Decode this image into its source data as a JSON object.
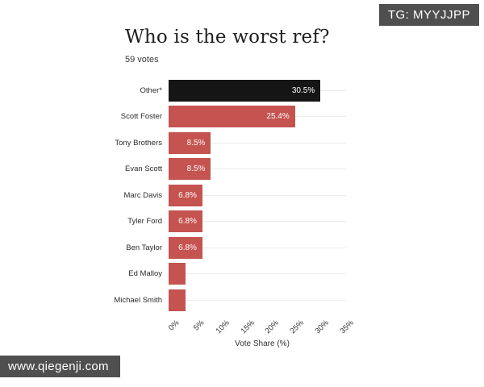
{
  "badge": {
    "label": "TG: MYYJJPP"
  },
  "watermark": {
    "label": "www.qiegenji.com"
  },
  "chart_data": {
    "type": "bar",
    "orientation": "horizontal",
    "title": "Who is the worst ref?",
    "subtitle": "59 votes",
    "xlabel": "Vote Share (%)",
    "categories": [
      "Other*",
      "Scott Foster",
      "Tony Brothers",
      "Evan Scott",
      "Marc Davis",
      "Tyler Ford",
      "Ben Taylor",
      "Ed Malloy",
      "Michael Smith"
    ],
    "values": [
      30.5,
      25.4,
      8.5,
      8.5,
      6.8,
      6.8,
      6.8,
      3.4,
      3.4
    ],
    "value_labels": [
      "30.5%",
      "25.4%",
      "8.5%",
      "8.5%",
      "6.8%",
      "6.8%",
      "6.8%",
      "",
      ""
    ],
    "bar_colors": [
      "#151515",
      "#c5534f",
      "#c5534f",
      "#c5534f",
      "#c5534f",
      "#c5534f",
      "#c5534f",
      "#c5534f",
      "#c5534f"
    ],
    "xlim": [
      0,
      35
    ],
    "xticks": [
      "0%",
      "5%",
      "10%",
      "15%",
      "20%",
      "25%",
      "30%",
      "35%"
    ],
    "grid": "horizontal-row-lines",
    "legend": "none",
    "colors": {
      "highlight_bar": "#151515",
      "default_bar": "#c5534f",
      "gridline": "#ececec"
    }
  }
}
